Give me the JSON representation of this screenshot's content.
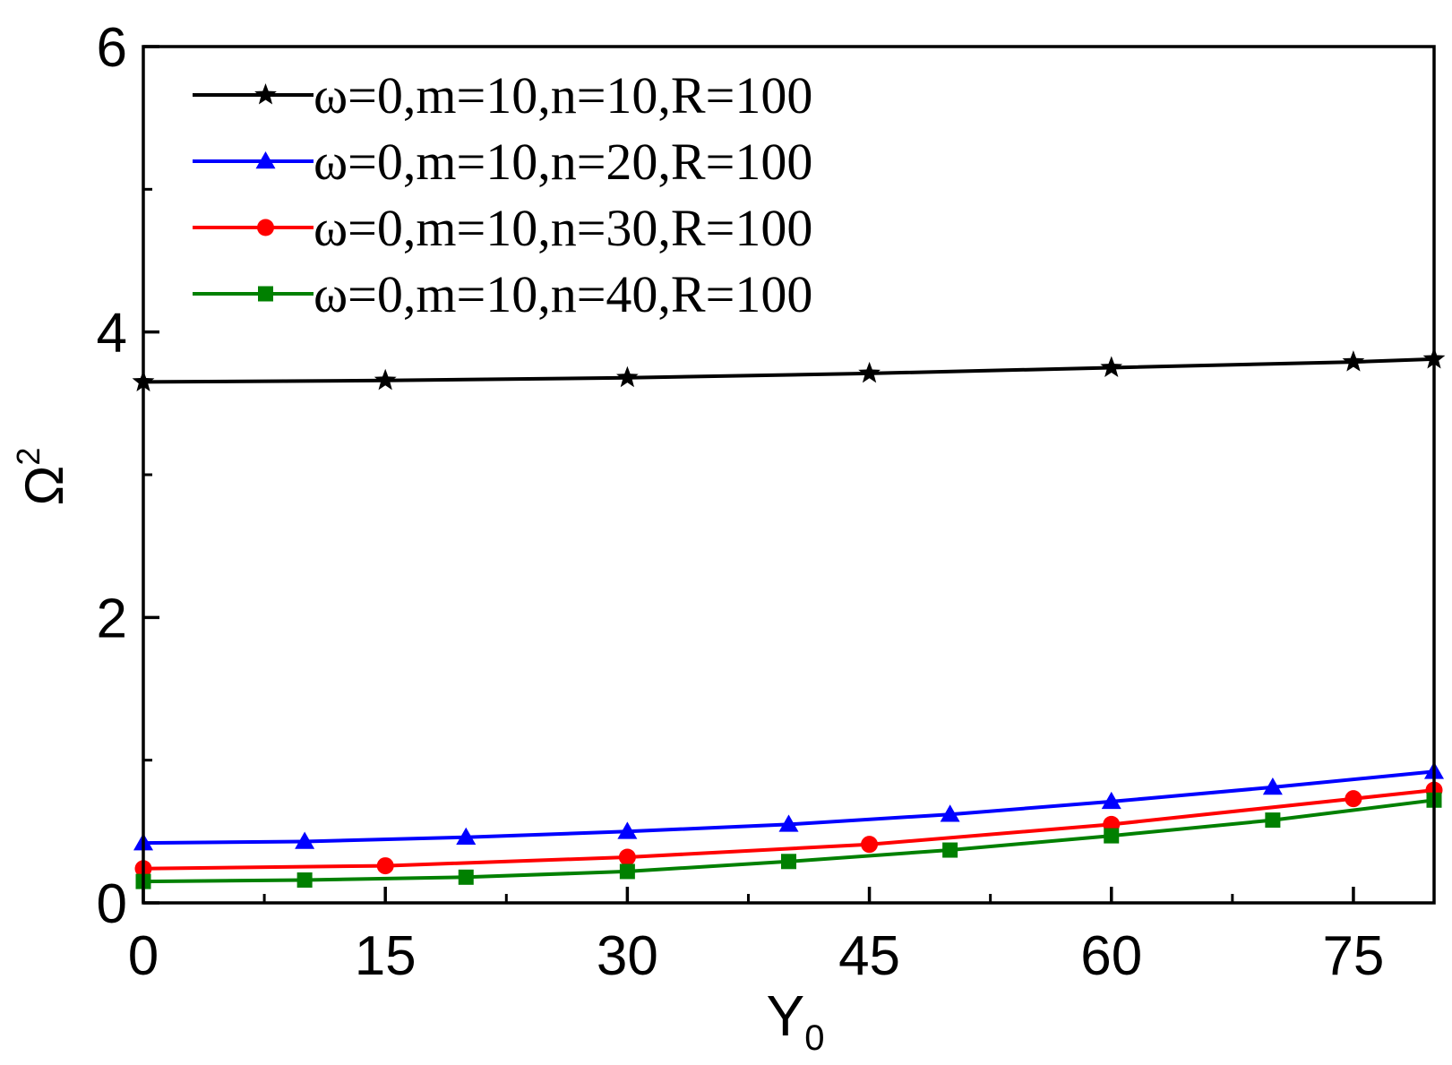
{
  "chart_data": {
    "type": "line",
    "title": "",
    "xlabel": "Y",
    "xlabel_sub": "0",
    "ylabel": "Ω",
    "ylabel_sup": "2",
    "xlim": [
      0,
      80
    ],
    "ylim": [
      0,
      6
    ],
    "xticks": [
      0,
      15,
      30,
      45,
      60,
      75
    ],
    "xtick_labels": [
      "0",
      "15",
      "30",
      "45",
      "60",
      "75"
    ],
    "xminor": [
      7.5,
      22.5,
      37.5,
      52.5,
      67.5
    ],
    "yticks": [
      0,
      2,
      4,
      6
    ],
    "ytick_labels": [
      "0",
      "2",
      "4",
      "6"
    ],
    "yminor": [
      1,
      3,
      5
    ],
    "grid": false,
    "legend_position": "top-left",
    "series": [
      {
        "name": "ω=0,m=10,n=10,R=100",
        "color": "#000000",
        "marker": "star",
        "x": [
          0,
          15,
          30,
          45,
          60,
          75,
          80
        ],
        "values": [
          3.65,
          3.66,
          3.68,
          3.71,
          3.75,
          3.79,
          3.81
        ],
        "marker_x": [
          0,
          15,
          30,
          45,
          60,
          75,
          80
        ]
      },
      {
        "name": "ω=0,m=10,n=20,R=100",
        "color": "#0000ff",
        "marker": "triangle",
        "x": [
          0,
          10,
          20,
          30,
          40,
          50,
          60,
          70,
          80
        ],
        "values": [
          0.42,
          0.43,
          0.46,
          0.5,
          0.55,
          0.62,
          0.71,
          0.81,
          0.92
        ],
        "marker_x": [
          0,
          10,
          20,
          30,
          40,
          50,
          60,
          70,
          80
        ]
      },
      {
        "name": "ω=0,m=10,n=30,R=100",
        "color": "#ff0000",
        "marker": "circle",
        "x": [
          0,
          15,
          30,
          45,
          60,
          75,
          80
        ],
        "values": [
          0.24,
          0.26,
          0.32,
          0.41,
          0.55,
          0.73,
          0.79
        ],
        "marker_x": [
          0,
          15,
          30,
          45,
          60,
          75,
          80
        ]
      },
      {
        "name": "ω=0,m=10,n=40,R=100",
        "color": "#008000",
        "marker": "square",
        "x": [
          0,
          10,
          20,
          30,
          40,
          50,
          60,
          70,
          80
        ],
        "values": [
          0.15,
          0.16,
          0.18,
          0.22,
          0.29,
          0.37,
          0.47,
          0.58,
          0.72
        ],
        "marker_x": [
          0,
          10,
          20,
          30,
          40,
          50,
          60,
          70,
          80
        ]
      }
    ]
  }
}
